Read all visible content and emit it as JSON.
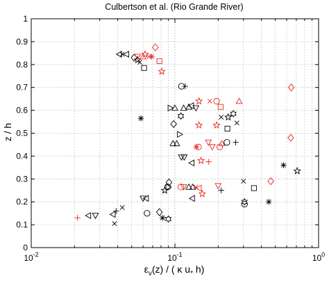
{
  "chart_data": {
    "type": "scatter",
    "title": "Culbertson et al. (Rio Grande River)",
    "xlabel": "εv(z) / ( κ u* h)",
    "ylabel": "z / h",
    "xscale": "log",
    "xlim": [
      0.01,
      1
    ],
    "ylim": [
      0,
      1
    ],
    "x_ticks": [
      {
        "value": 0.01,
        "base": "10",
        "exp": "-2"
      },
      {
        "value": 0.1,
        "base": "10",
        "exp": "-1"
      },
      {
        "value": 1,
        "base": "10",
        "exp": "0"
      }
    ],
    "y_ticks": [
      "0",
      "0.1",
      "0.2",
      "0.3",
      "0.4",
      "0.5",
      "0.6",
      "0.7",
      "0.8",
      "0.9",
      "1"
    ],
    "grid": true,
    "colors": {
      "black": "#000000",
      "red": "#e8261c"
    },
    "series": [
      {
        "color": "black",
        "points": [
          {
            "x": 0.041,
            "y": 0.845,
            "m": "tri-left"
          },
          {
            "x": 0.043,
            "y": 0.845,
            "m": "x"
          },
          {
            "x": 0.046,
            "y": 0.845,
            "m": "tri-left"
          },
          {
            "x": 0.052,
            "y": 0.83,
            "m": "diamond"
          },
          {
            "x": 0.055,
            "y": 0.82,
            "m": "star"
          },
          {
            "x": 0.057,
            "y": 0.81,
            "m": "x"
          },
          {
            "x": 0.061,
            "y": 0.785,
            "m": "square"
          },
          {
            "x": 0.058,
            "y": 0.565,
            "m": "asterisk"
          },
          {
            "x": 0.111,
            "y": 0.705,
            "m": "circle"
          },
          {
            "x": 0.118,
            "y": 0.705,
            "m": "plus"
          },
          {
            "x": 0.13,
            "y": 0.62,
            "m": "tri-left"
          },
          {
            "x": 0.14,
            "y": 0.61,
            "m": "tri-down"
          },
          {
            "x": 0.125,
            "y": 0.615,
            "m": "tri-up"
          },
          {
            "x": 0.115,
            "y": 0.61,
            "m": "tri-up"
          },
          {
            "x": 0.093,
            "y": 0.61,
            "m": "tri-right"
          },
          {
            "x": 0.1,
            "y": 0.61,
            "m": "tri-up"
          },
          {
            "x": 0.11,
            "y": 0.575,
            "m": "hexagram"
          },
          {
            "x": 0.098,
            "y": 0.54,
            "m": "diamond"
          },
          {
            "x": 0.108,
            "y": 0.495,
            "m": "tri-right"
          },
          {
            "x": 0.097,
            "y": 0.455,
            "m": "tri-up"
          },
          {
            "x": 0.103,
            "y": 0.455,
            "m": "tri-up"
          },
          {
            "x": 0.111,
            "y": 0.395,
            "m": "tri-down"
          },
          {
            "x": 0.116,
            "y": 0.395,
            "m": "tri-down"
          },
          {
            "x": 0.131,
            "y": 0.37,
            "m": "tri-left"
          },
          {
            "x": 0.091,
            "y": 0.285,
            "m": "diamond"
          },
          {
            "x": 0.089,
            "y": 0.265,
            "m": "circle"
          },
          {
            "x": 0.09,
            "y": 0.265,
            "m": "tri-right"
          },
          {
            "x": 0.125,
            "y": 0.265,
            "m": "tri-up"
          },
          {
            "x": 0.133,
            "y": 0.265,
            "m": "tri-up"
          },
          {
            "x": 0.085,
            "y": 0.25,
            "m": "star"
          },
          {
            "x": 0.06,
            "y": 0.215,
            "m": "tri-down"
          },
          {
            "x": 0.063,
            "y": 0.215,
            "m": "tri-left"
          },
          {
            "x": 0.132,
            "y": 0.215,
            "m": "tri-left"
          },
          {
            "x": 0.064,
            "y": 0.15,
            "m": "circle"
          },
          {
            "x": 0.078,
            "y": 0.155,
            "m": "diamond"
          },
          {
            "x": 0.082,
            "y": 0.13,
            "m": "asterisk"
          },
          {
            "x": 0.09,
            "y": 0.125,
            "m": "hexagram"
          },
          {
            "x": 0.043,
            "y": 0.175,
            "m": "x"
          },
          {
            "x": 0.039,
            "y": 0.16,
            "m": "plus"
          },
          {
            "x": 0.037,
            "y": 0.145,
            "m": "tri-left"
          },
          {
            "x": 0.038,
            "y": 0.105,
            "m": "x"
          },
          {
            "x": 0.025,
            "y": 0.14,
            "m": "tri-left"
          },
          {
            "x": 0.028,
            "y": 0.14,
            "m": "tri-down"
          },
          {
            "x": 0.21,
            "y": 0.57,
            "m": "x"
          },
          {
            "x": 0.235,
            "y": 0.57,
            "m": "star"
          },
          {
            "x": 0.255,
            "y": 0.585,
            "m": "hexagram"
          },
          {
            "x": 0.232,
            "y": 0.52,
            "m": "square"
          },
          {
            "x": 0.27,
            "y": 0.545,
            "m": "x"
          },
          {
            "x": 0.23,
            "y": 0.46,
            "m": "circle"
          },
          {
            "x": 0.265,
            "y": 0.46,
            "m": "plus"
          },
          {
            "x": 0.21,
            "y": 0.25,
            "m": "plus"
          },
          {
            "x": 0.3,
            "y": 0.29,
            "m": "x"
          },
          {
            "x": 0.355,
            "y": 0.26,
            "m": "square"
          },
          {
            "x": 0.57,
            "y": 0.36,
            "m": "asterisk"
          },
          {
            "x": 0.71,
            "y": 0.335,
            "m": "star"
          },
          {
            "x": 0.305,
            "y": 0.2,
            "m": "hexagram"
          },
          {
            "x": 0.305,
            "y": 0.19,
            "m": "circle"
          },
          {
            "x": 0.45,
            "y": 0.2,
            "m": "asterisk"
          }
        ]
      },
      {
        "color": "red",
        "points": [
          {
            "x": 0.055,
            "y": 0.835,
            "m": "tri-down"
          },
          {
            "x": 0.06,
            "y": 0.835,
            "m": "tri-up"
          },
          {
            "x": 0.062,
            "y": 0.845,
            "m": "star"
          },
          {
            "x": 0.066,
            "y": 0.835,
            "m": "x"
          },
          {
            "x": 0.069,
            "y": 0.835,
            "m": "asterisk"
          },
          {
            "x": 0.073,
            "y": 0.875,
            "m": "diamond"
          },
          {
            "x": 0.078,
            "y": 0.815,
            "m": "square"
          },
          {
            "x": 0.081,
            "y": 0.77,
            "m": "star"
          },
          {
            "x": 0.147,
            "y": 0.64,
            "m": "star"
          },
          {
            "x": 0.175,
            "y": 0.64,
            "m": "x"
          },
          {
            "x": 0.195,
            "y": 0.64,
            "m": "circle"
          },
          {
            "x": 0.208,
            "y": 0.615,
            "m": "square"
          },
          {
            "x": 0.28,
            "y": 0.64,
            "m": "tri-up"
          },
          {
            "x": 0.147,
            "y": 0.535,
            "m": "star"
          },
          {
            "x": 0.195,
            "y": 0.535,
            "m": "star"
          },
          {
            "x": 0.171,
            "y": 0.46,
            "m": "tri-down"
          },
          {
            "x": 0.182,
            "y": 0.44,
            "m": "tri-down"
          },
          {
            "x": 0.141,
            "y": 0.44,
            "m": "asterisk"
          },
          {
            "x": 0.146,
            "y": 0.44,
            "m": "circle"
          },
          {
            "x": 0.205,
            "y": 0.44,
            "m": "circle"
          },
          {
            "x": 0.212,
            "y": 0.455,
            "m": "tri-up"
          },
          {
            "x": 0.152,
            "y": 0.38,
            "m": "star"
          },
          {
            "x": 0.172,
            "y": 0.375,
            "m": "plus"
          },
          {
            "x": 0.11,
            "y": 0.265,
            "m": "circle"
          },
          {
            "x": 0.115,
            "y": 0.265,
            "m": "tri-down"
          },
          {
            "x": 0.14,
            "y": 0.265,
            "m": "x"
          },
          {
            "x": 0.147,
            "y": 0.26,
            "m": "tri-left"
          },
          {
            "x": 0.2,
            "y": 0.27,
            "m": "tri-down"
          },
          {
            "x": 0.155,
            "y": 0.235,
            "m": "star"
          },
          {
            "x": 0.645,
            "y": 0.7,
            "m": "diamond"
          },
          {
            "x": 0.64,
            "y": 0.48,
            "m": "diamond"
          },
          {
            "x": 0.465,
            "y": 0.29,
            "m": "diamond"
          },
          {
            "x": 0.021,
            "y": 0.13,
            "m": "plus"
          }
        ]
      }
    ]
  }
}
